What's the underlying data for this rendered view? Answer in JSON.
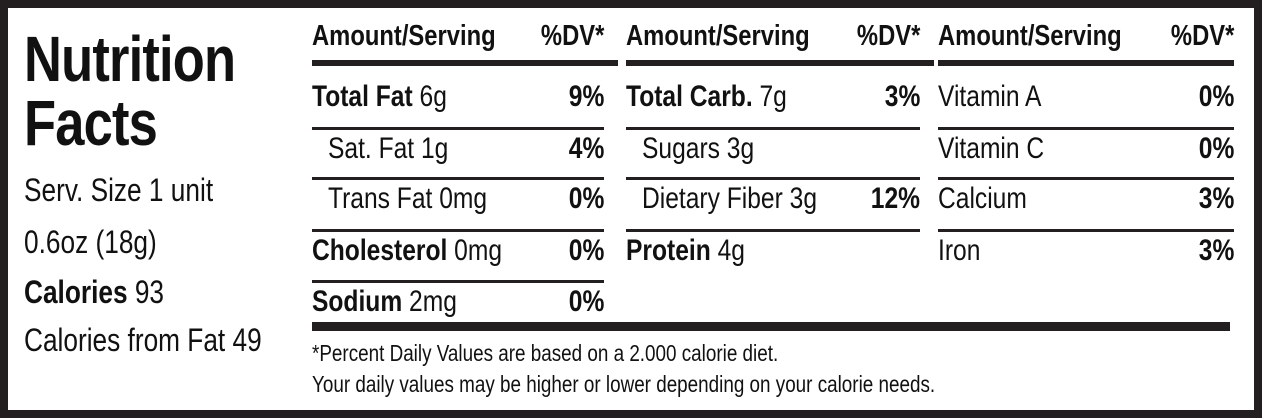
{
  "title": "Nutrition Facts",
  "serving": [
    "Serv. Size 1 unit",
    "0.6oz (18g)"
  ],
  "calories": {
    "label": "Calories",
    "value": 93
  },
  "calories_from_fat": {
    "label": "Calories from Fat",
    "value": 49
  },
  "header": {
    "amount": "Amount/Serving",
    "dv": "%DV*"
  },
  "columns": [
    [
      {
        "name": "Total Fat",
        "amount": "6g",
        "dv": "9%",
        "bold": true,
        "indent": false
      },
      {
        "name": "Sat. Fat",
        "amount": "1g",
        "dv": "4%",
        "bold": false,
        "indent": true
      },
      {
        "name": "Trans Fat",
        "amount": "0mg",
        "dv": "0%",
        "bold": false,
        "indent": true
      },
      {
        "name": "Cholesterol",
        "amount": "0mg",
        "dv": "0%",
        "bold": true,
        "indent": false
      },
      {
        "name": "Sodium",
        "amount": "2mg",
        "dv": "0%",
        "bold": true,
        "indent": false
      }
    ],
    [
      {
        "name": "Total Carb.",
        "amount": "7g",
        "dv": "3%",
        "bold": true,
        "indent": false
      },
      {
        "name": "Sugars",
        "amount": "3g",
        "dv": null,
        "bold": false,
        "indent": true
      },
      {
        "name": "Dietary Fiber",
        "amount": "3g",
        "dv": "12%",
        "bold": false,
        "indent": true
      },
      {
        "name": "Protein",
        "amount": "4g",
        "dv": null,
        "bold": true,
        "indent": false
      }
    ],
    [
      {
        "name": "Vitamin A",
        "amount": null,
        "dv": "0%",
        "bold": false,
        "indent": false
      },
      {
        "name": "Vitamin C",
        "amount": null,
        "dv": "0%",
        "bold": false,
        "indent": false
      },
      {
        "name": "Calcium",
        "amount": null,
        "dv": "3%",
        "bold": false,
        "indent": false
      },
      {
        "name": "Iron",
        "amount": null,
        "dv": "3%",
        "bold": false,
        "indent": false
      }
    ]
  ],
  "footnote": [
    "*Percent Daily Values are based on a 2.000 calorie diet.",
    "Your daily values may be higher or lower depending on your calorie needs."
  ]
}
